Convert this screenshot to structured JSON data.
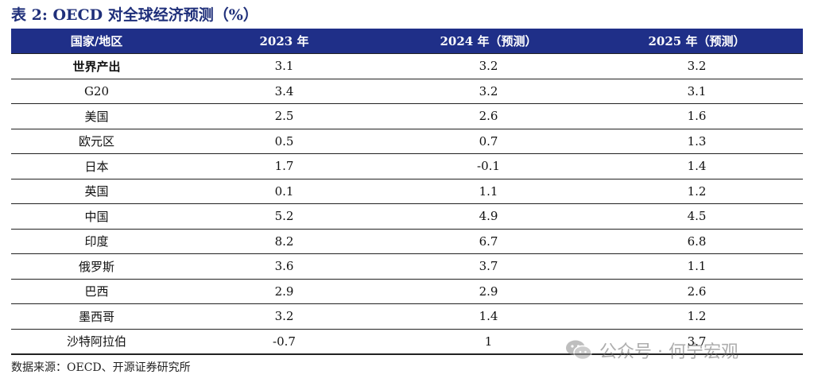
{
  "title": "表 2:  OECD 对全球经济预测（%）",
  "table": {
    "headers": [
      "国家/地区",
      "2023 年",
      "2024 年（预测）",
      "2025 年（预测）"
    ],
    "rows": [
      {
        "name": "世界产出",
        "v2023": "3.1",
        "v2024": "3.2",
        "v2025": "3.2"
      },
      {
        "name": "G20",
        "v2023": "3.4",
        "v2024": "3.2",
        "v2025": "3.1"
      },
      {
        "name": "美国",
        "v2023": "2.5",
        "v2024": "2.6",
        "v2025": "1.6"
      },
      {
        "name": "欧元区",
        "v2023": "0.5",
        "v2024": "0.7",
        "v2025": "1.3"
      },
      {
        "name": "日本",
        "v2023": "1.7",
        "v2024": "-0.1",
        "v2025": "1.4"
      },
      {
        "name": "英国",
        "v2023": "0.1",
        "v2024": "1.1",
        "v2025": "1.2"
      },
      {
        "name": "中国",
        "v2023": "5.2",
        "v2024": "4.9",
        "v2025": "4.5"
      },
      {
        "name": "印度",
        "v2023": "8.2",
        "v2024": "6.7",
        "v2025": "6.8"
      },
      {
        "name": "俄罗斯",
        "v2023": "3.6",
        "v2024": "3.7",
        "v2025": "1.1"
      },
      {
        "name": "巴西",
        "v2023": "2.9",
        "v2024": "2.9",
        "v2025": "2.6"
      },
      {
        "name": "墨西哥",
        "v2023": "3.2",
        "v2024": "1.4",
        "v2025": "1.2"
      },
      {
        "name": "沙特阿拉伯",
        "v2023": "-0.7",
        "v2024": "1",
        "v2025": "3.7"
      }
    ]
  },
  "source": "数据来源：OECD、开源证券研究所",
  "watermark": {
    "text": "公众号 · 何宁宏观",
    "icon": "wechat-icon"
  }
}
